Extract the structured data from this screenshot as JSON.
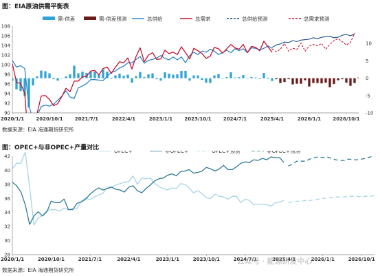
{
  "chart_data": [
    {
      "type": "bar+line",
      "title": "图：EIA原油供需平衡表",
      "source": "数据来源：EIA   海通期货研究所",
      "x_ticks": [
        "2020/1/1",
        "2020/10/1",
        "2021/7/1",
        "2022/4/1",
        "2023/1/1",
        "2023/10/1",
        "2024/7/1",
        "2025/4/1",
        "2026/1/1",
        "2026/10/1"
      ],
      "x_range": [
        0,
        84
      ],
      "y_left": {
        "ticks": [
          90,
          92,
          94,
          96,
          98,
          100,
          102,
          104,
          106,
          108
        ],
        "range": [
          90,
          108
        ]
      },
      "y_right": {
        "ticks": [
          -10,
          -5,
          0,
          5,
          10
        ],
        "range": [
          -10,
          15
        ]
      },
      "legend": [
        {
          "key": "diff",
          "label": "需-供差",
          "color": "#2EA3D5",
          "kind": "bar"
        },
        {
          "key": "diff_fc",
          "label": "需-供差预测",
          "color": "#6B1A1A",
          "kind": "bar"
        },
        {
          "key": "supply",
          "label": "总供给",
          "color": "#2E86C8",
          "kind": "line"
        },
        {
          "key": "demand",
          "label": "总需求",
          "color": "#C8102E",
          "kind": "line"
        },
        {
          "key": "supply_fc",
          "label": "总供给预测",
          "color": "#1F4E8C",
          "kind": "dashed"
        },
        {
          "key": "demand_fc",
          "label": "总需求预测",
          "color": "#C8102E",
          "kind": "dashed"
        }
      ],
      "series": {
        "supply": [
          100.9,
          99.5,
          99.8,
          99.2,
          91.5,
          88.6,
          89.4,
          91.3,
          91.6,
          91.4,
          91.8,
          92.6,
          93.5,
          94.6,
          93.3,
          93.0,
          95.2,
          95.6,
          96.1,
          96.9,
          96.9,
          96.8,
          96.7,
          97.6,
          98.4,
          98.7,
          99.3,
          99.7,
          100.4,
          100.4,
          101.1,
          101.7,
          100.3,
          100.9,
          101.1,
          101.4,
          101.9,
          101.3,
          101.0,
          101.6,
          101.0,
          101.6,
          100.4,
          101.9,
          102.6,
          102.1,
          102.8,
          102.6,
          103.2,
          102.8,
          102.1,
          102.5,
          103.0,
          102.5,
          103.3,
          102.9,
          103.3,
          102.5,
          103.5,
          103.4,
          103.1,
          103.4,
          103.9,
          103.4
        ],
        "demand": [
          100.2,
          96.3,
          96.1,
          94.0,
          83.0,
          86.5,
          89.9,
          93.5,
          93.6,
          92.8,
          91.5,
          91.9,
          93.4,
          95.1,
          94.4,
          96.6,
          96.6,
          97.5,
          97.6,
          98.7,
          98.8,
          97.9,
          99.2,
          99.5,
          98.2,
          99.5,
          100.6,
          100.4,
          101.4,
          99.1,
          101.7,
          103.5,
          100.6,
          102.0,
          102.5,
          101.1,
          101.2,
          103.0,
          102.3,
          102.6,
          102.1,
          103.7,
          102.5,
          101.2,
          103.4,
          102.9,
          102.3,
          101.3,
          101.8,
          103.6,
          103.3,
          102.4,
          103.3,
          104.2,
          103.5,
          103.2,
          104.2,
          102.5,
          103.8,
          103.6,
          102.9,
          104.9,
          103.7,
          102.6
        ],
        "supply_fc": [
          103.6,
          104.1,
          104.3,
          104.7,
          104.6,
          105.0,
          104.8,
          105.1,
          105.2,
          105.3,
          105.6,
          105.4,
          105.7,
          105.8,
          105.9,
          105.6,
          105.7,
          106.1,
          106.3,
          106.0,
          106.4
        ],
        "demand_fc": [
          103.3,
          102.7,
          103.2,
          104.4,
          102.8,
          103.4,
          103.2,
          104.5,
          102.8,
          103.9,
          104.2,
          103.9,
          104.4,
          103.2,
          104.2,
          105.0,
          105.4,
          104.8,
          104.1,
          104.6,
          106.6
        ],
        "diff": [
          -0.7,
          -3.2,
          -3.7,
          -5.2,
          -8.5,
          -2.1,
          0.5,
          2.2,
          2.0,
          1.4,
          -0.3,
          -0.7,
          -0.1,
          0.5,
          1.1,
          3.6,
          1.4,
          1.9,
          1.5,
          1.8,
          1.9,
          1.1,
          2.5,
          1.9,
          -0.2,
          0.8,
          1.3,
          0.7,
          1.0,
          -1.3,
          0.6,
          1.8,
          0.3,
          1.1,
          1.4,
          -0.3,
          -0.7,
          1.7,
          1.3,
          1.0,
          1.1,
          2.1,
          2.1,
          -0.7,
          0.8,
          0.8,
          -0.5,
          -1.3,
          -1.4,
          0.8,
          1.2,
          -0.1,
          0.3,
          1.7,
          0.2,
          0.3,
          0.9,
          0.0,
          0.3,
          0.2,
          -0.2,
          1.5,
          -0.2,
          -0.8
        ],
        "diff_fc": [
          -0.3,
          -1.4,
          -1.1,
          -0.3,
          -1.8,
          -1.6,
          -1.6,
          -0.6,
          -2.4,
          -1.4,
          -1.4,
          -1.5,
          -1.3,
          -2.6,
          -1.7,
          -0.6,
          -0.3,
          -1.3,
          -2.2,
          -1.4,
          0.2
        ]
      }
    },
    {
      "type": "line",
      "title": "图：OPEC+与非OPEC+产量对比",
      "source": "数据来源：EIA   海通期货研究所",
      "x_ticks": [
        "2020/1/1",
        "2020/10/1",
        "2021/7/1",
        "2022/4/1",
        "2023/1/1",
        "2023/10/1",
        "2024/7/1",
        "2025/4/1",
        "2026/1/1",
        "2026/10/1"
      ],
      "x_range": [
        0,
        84
      ],
      "y": {
        "ticks": [
          28,
          30,
          32,
          34,
          36,
          38,
          40,
          42
        ],
        "range": [
          28,
          42
        ]
      },
      "legend": [
        {
          "key": "opec",
          "label": "OPEC+",
          "color": "#A9D3E6",
          "kind": "line"
        },
        {
          "key": "nonopec",
          "label": "非OPEC+",
          "color": "#2E7A96",
          "kind": "line"
        },
        {
          "key": "opec_fc",
          "label": "OPEC+预测",
          "color": "#A9D3E6",
          "kind": "dashed"
        },
        {
          "key": "nonopec_fc",
          "label": "非OPEC+预测",
          "color": "#2E7A96",
          "kind": "dashed"
        }
      ],
      "series": {
        "opec": [
          40.2,
          41.0,
          41.0,
          42.6,
          37.6,
          32.2,
          33.2,
          33.6,
          34.3,
          34.4,
          34.4,
          34.2,
          34.6,
          34.4,
          34.6,
          34.6,
          35.6,
          36.1,
          35.8,
          36.2,
          36.5,
          36.7,
          37.6,
          37.6,
          37.9,
          38.1,
          38.3,
          38.4,
          39.2,
          38.0,
          38.9,
          38.8,
          38.9,
          38.1,
          37.7,
          37.4,
          37.2,
          37.5,
          37.4,
          38.1,
          38.0,
          37.5,
          36.8,
          37.1,
          36.7,
          36.1,
          36.0,
          36.6,
          36.3,
          36.2,
          35.9,
          36.3,
          36.3,
          35.4,
          35.9,
          35.7,
          35.1,
          35.2,
          35.2,
          35.1,
          34.9,
          35.4,
          35.5,
          35.7
        ],
        "nonopec": [
          38.3,
          37.8,
          36.9,
          35.1,
          32.3,
          33.5,
          34.1,
          33.5,
          34.1,
          35.6,
          35.4,
          35.4,
          35.9,
          34.4,
          34.4,
          35.3,
          35.5,
          35.9,
          36.6,
          37.1,
          37.5,
          37.2,
          37.4,
          37.6,
          37.3,
          37.2,
          36.9,
          37.6,
          37.8,
          37.1,
          36.8,
          37.4,
          37.9,
          38.5,
          38.8,
          38.9,
          39.3,
          39.5,
          39.2,
          39.8,
          39.9,
          40.1,
          39.6,
          39.7,
          39.9,
          40.4,
          40.2,
          39.9,
          40.2,
          40.7,
          40.1,
          40.1,
          40.5,
          41.0,
          41.2,
          41.1,
          41.5,
          41.4,
          41.7,
          41.5,
          41.9,
          41.8,
          41.8,
          41.1
        ],
        "opec_fc": [
          35.4,
          35.5,
          35.6,
          35.6,
          35.7,
          35.7,
          35.8,
          35.9,
          36.0,
          36.1,
          36.1,
          36.2,
          36.2,
          36.2,
          36.3,
          36.3,
          36.3,
          36.2,
          36.3,
          36.3,
          36.4
        ],
        "nonopec_fc": [
          40.6,
          40.9,
          41.3,
          41.3,
          41.3,
          41.6,
          41.8,
          41.9,
          41.8,
          41.9,
          41.7,
          41.5,
          41.4,
          41.4,
          41.6,
          41.5,
          41.5,
          41.6,
          41.7,
          41.9,
          41.9
        ]
      }
    }
  ],
  "watermark": "公众号 · 能源研发中心"
}
